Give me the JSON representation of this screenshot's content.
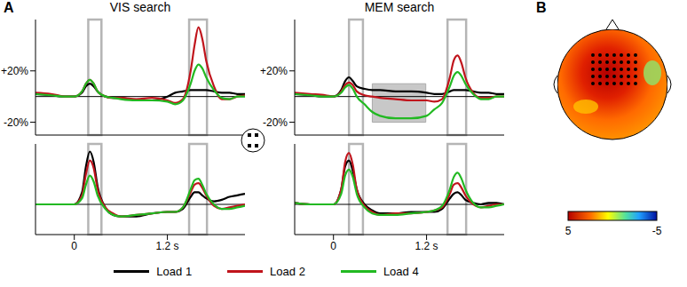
{
  "panel_labels": [
    "A",
    "B"
  ],
  "chart_data": [
    {
      "type": "line",
      "title": "VIS search",
      "x": [
        -0.5,
        -0.3,
        -0.1,
        0,
        0.1,
        0.15,
        0.2,
        0.25,
        0.3,
        0.4,
        0.5,
        0.6,
        0.8,
        1.0,
        1.2,
        1.3,
        1.4,
        1.5,
        1.55,
        1.6,
        1.65,
        1.7,
        1.8,
        1.9,
        2.0,
        2.1,
        2.2
      ],
      "series": [
        {
          "name": "Load 1",
          "color": "#000000",
          "values": [
            2,
            1,
            0,
            0,
            3,
            8,
            10,
            8,
            4,
            0,
            -1,
            -1,
            -3,
            -3,
            0,
            3,
            4,
            5,
            5,
            5,
            5,
            5,
            4,
            3,
            3,
            2,
            2
          ]
        },
        {
          "name": "Load 2",
          "color": "#c0141c",
          "values": [
            3,
            2,
            0,
            0,
            4,
            10,
            13,
            10,
            4,
            0,
            -1,
            -1,
            -2,
            -1,
            -3,
            -5,
            -2,
            20,
            40,
            54,
            45,
            28,
            8,
            -2,
            -2,
            0,
            1
          ]
        },
        {
          "name": "Load 4",
          "color": "#22b922",
          "values": [
            2,
            1,
            0,
            0,
            4,
            10,
            13,
            10,
            4,
            0,
            -1,
            -2,
            -3,
            -3,
            -4,
            -6,
            -3,
            10,
            20,
            25,
            22,
            15,
            5,
            -1,
            -2,
            0,
            0
          ]
        }
      ],
      "xlim": [
        -0.5,
        2.2
      ],
      "xticks": [
        0,
        1.2
      ],
      "ylim": [
        -30,
        60
      ],
      "yticks": [
        {
          "value": -20,
          "label": "-20%"
        },
        {
          "value": 20,
          "label": "+20%"
        }
      ],
      "tick_labels": "y",
      "baseline": 0,
      "windows": [
        {
          "x": [
            0.18,
            0.35
          ]
        },
        {
          "x": [
            1.48,
            1.71
          ]
        }
      ]
    },
    {
      "type": "line",
      "x": [
        -0.5,
        -0.3,
        -0.1,
        0,
        0.1,
        0.15,
        0.2,
        0.25,
        0.3,
        0.4,
        0.5,
        0.6,
        0.8,
        1.0,
        1.2,
        1.3,
        1.4,
        1.5,
        1.55,
        1.6,
        1.65,
        1.7,
        1.8,
        1.9,
        2.0,
        2.1,
        2.2
      ],
      "series": [
        {
          "name": "Load 1",
          "color": "#000000",
          "values": [
            0,
            0,
            0,
            0,
            8,
            25,
            35,
            28,
            12,
            -2,
            -7,
            -8,
            -8,
            -6,
            -5,
            -5,
            -3,
            5,
            8,
            8,
            6,
            4,
            2,
            3,
            5,
            6,
            7
          ]
        },
        {
          "name": "Load 2",
          "color": "#c0141c",
          "values": [
            0,
            0,
            0,
            0,
            6,
            20,
            29,
            24,
            10,
            -2,
            -6,
            -8,
            -7,
            -6,
            -5,
            -5,
            -2,
            8,
            13,
            14,
            11,
            6,
            -1,
            -3,
            -2,
            -1,
            0
          ]
        },
        {
          "name": "Load 4",
          "color": "#22b922",
          "values": [
            0,
            0,
            0,
            0,
            4,
            13,
            19,
            15,
            6,
            -3,
            -7,
            -8,
            -7,
            -6,
            -5,
            -5,
            -2,
            10,
            16,
            17,
            13,
            7,
            0,
            -3,
            -3,
            -2,
            -1
          ]
        }
      ],
      "xlim": [
        -0.5,
        2.2
      ],
      "xticks": [
        {
          "value": 0,
          "label": "0"
        },
        {
          "value": 1.2,
          "label": "1.2 s"
        }
      ],
      "ylim": [
        -20,
        40
      ],
      "yticks": [
        -20,
        20
      ],
      "tick_labels": "x",
      "baseline": 0,
      "windows": [
        {
          "x": [
            0.18,
            0.35
          ]
        },
        {
          "x": [
            1.48,
            1.71
          ]
        }
      ]
    },
    {
      "type": "line",
      "title": "MEM search",
      "x": [
        -0.5,
        -0.3,
        -0.1,
        0,
        0.1,
        0.15,
        0.2,
        0.25,
        0.3,
        0.4,
        0.5,
        0.6,
        0.8,
        1.0,
        1.2,
        1.3,
        1.4,
        1.5,
        1.55,
        1.6,
        1.65,
        1.7,
        1.8,
        1.9,
        2.0,
        2.1,
        2.2
      ],
      "series": [
        {
          "name": "Load 1",
          "color": "#000000",
          "values": [
            2,
            1,
            0,
            0,
            5,
            12,
            15,
            12,
            8,
            6,
            5,
            5,
            4,
            4,
            3,
            2,
            2,
            4,
            5,
            5,
            5,
            5,
            4,
            3,
            3,
            2,
            2
          ]
        },
        {
          "name": "Load 2",
          "color": "#c0141c",
          "values": [
            3,
            2,
            1,
            0,
            4,
            9,
            11,
            9,
            4,
            1,
            0,
            -1,
            -2,
            -3,
            -3,
            -4,
            -2,
            15,
            28,
            32,
            26,
            15,
            3,
            -1,
            -1,
            0,
            0
          ]
        },
        {
          "name": "Load 4",
          "color": "#22b922",
          "values": [
            2,
            1,
            0,
            0,
            3,
            7,
            9,
            6,
            0,
            -6,
            -12,
            -15,
            -17,
            -17,
            -15,
            -10,
            -5,
            8,
            16,
            19,
            16,
            10,
            2,
            -2,
            -2,
            0,
            0
          ]
        }
      ],
      "xlim": [
        -0.5,
        2.2
      ],
      "xticks": [
        0,
        1.2
      ],
      "ylim": [
        -30,
        60
      ],
      "yticks": [
        {
          "value": -20,
          "label": "-20%"
        },
        {
          "value": 20,
          "label": "+20%"
        }
      ],
      "tick_labels": "y",
      "baseline": 0,
      "windows": [
        {
          "x": [
            0.2,
            0.38
          ]
        },
        {
          "x": [
            0.5,
            1.19
          ],
          "y": [
            -20,
            10
          ]
        },
        {
          "x": [
            1.47,
            1.71
          ]
        }
      ]
    },
    {
      "type": "line",
      "x": [
        -0.5,
        -0.3,
        -0.1,
        0,
        0.1,
        0.15,
        0.2,
        0.25,
        0.3,
        0.4,
        0.5,
        0.6,
        0.8,
        1.0,
        1.2,
        1.3,
        1.4,
        1.5,
        1.55,
        1.6,
        1.65,
        1.7,
        1.8,
        1.9,
        2.0,
        2.1,
        2.2
      ],
      "series": [
        {
          "name": "Load 1",
          "color": "#000000",
          "values": [
            1,
            0,
            0,
            0,
            10,
            25,
            29,
            22,
            10,
            0,
            -4,
            -6,
            -6,
            -5,
            -5,
            -5,
            -3,
            4,
            7,
            8,
            6,
            3,
            1,
            0,
            1,
            1,
            0
          ]
        },
        {
          "name": "Load 2",
          "color": "#c0141c",
          "values": [
            1,
            0,
            0,
            0,
            10,
            28,
            34,
            26,
            10,
            -1,
            -5,
            -7,
            -6,
            -6,
            -5,
            -4,
            -2,
            7,
            13,
            14,
            11,
            6,
            0,
            -2,
            -1,
            0,
            0
          ]
        },
        {
          "name": "Load 4",
          "color": "#22b922",
          "values": [
            1,
            0,
            0,
            0,
            7,
            19,
            23,
            18,
            7,
            -2,
            -6,
            -7,
            -7,
            -6,
            -5,
            -4,
            -1,
            10,
            18,
            21,
            17,
            10,
            1,
            -2,
            -2,
            -1,
            0
          ]
        }
      ],
      "xlim": [
        -0.5,
        2.2
      ],
      "xticks": [
        {
          "value": 0,
          "label": "0"
        },
        {
          "value": 1.2,
          "label": "1.2 s"
        }
      ],
      "ylim": [
        -20,
        40
      ],
      "yticks": [
        -20,
        20
      ],
      "tick_labels": "x",
      "baseline": 0,
      "windows": [
        {
          "x": [
            0.2,
            0.38
          ]
        },
        {
          "x": [
            1.47,
            1.71
          ]
        }
      ]
    }
  ],
  "topography": {
    "colorbar": {
      "range": [
        5,
        -5
      ],
      "ticks": [
        5,
        -5
      ]
    }
  }
}
